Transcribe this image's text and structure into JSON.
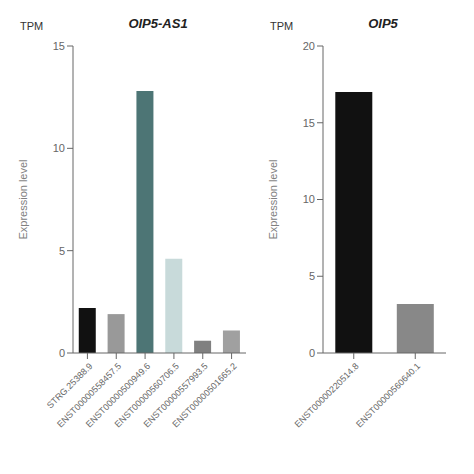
{
  "chart_data": [
    {
      "type": "bar",
      "title": "OIP5-AS1",
      "ylabel": "Expression level",
      "annotations": [
        "TPM"
      ],
      "categories": [
        "STRG.25388.9",
        "ENST00000558457.5",
        "ENST00000500949.6",
        "ENST00000560706.5",
        "ENST00000557993.5",
        "ENST00000501665.2"
      ],
      "values": [
        2.2,
        1.9,
        12.8,
        4.6,
        0.6,
        1.1
      ],
      "colors": [
        "#111111",
        "#999999",
        "#4d7575",
        "#c8dada",
        "#808080",
        "#a0a0a0"
      ],
      "ylim": [
        0,
        15
      ],
      "yticks": [
        0,
        5,
        10,
        15
      ]
    },
    {
      "type": "bar",
      "title": "OIP5",
      "ylabel": "Expression level",
      "annotations": [
        "TPM"
      ],
      "categories": [
        "ENST00000220514.8",
        "ENST00000560640.1"
      ],
      "values": [
        17.0,
        3.2
      ],
      "colors": [
        "#111111",
        "#888888"
      ],
      "ylim": [
        0,
        20
      ],
      "yticks": [
        0,
        5,
        10,
        15,
        20
      ]
    }
  ]
}
